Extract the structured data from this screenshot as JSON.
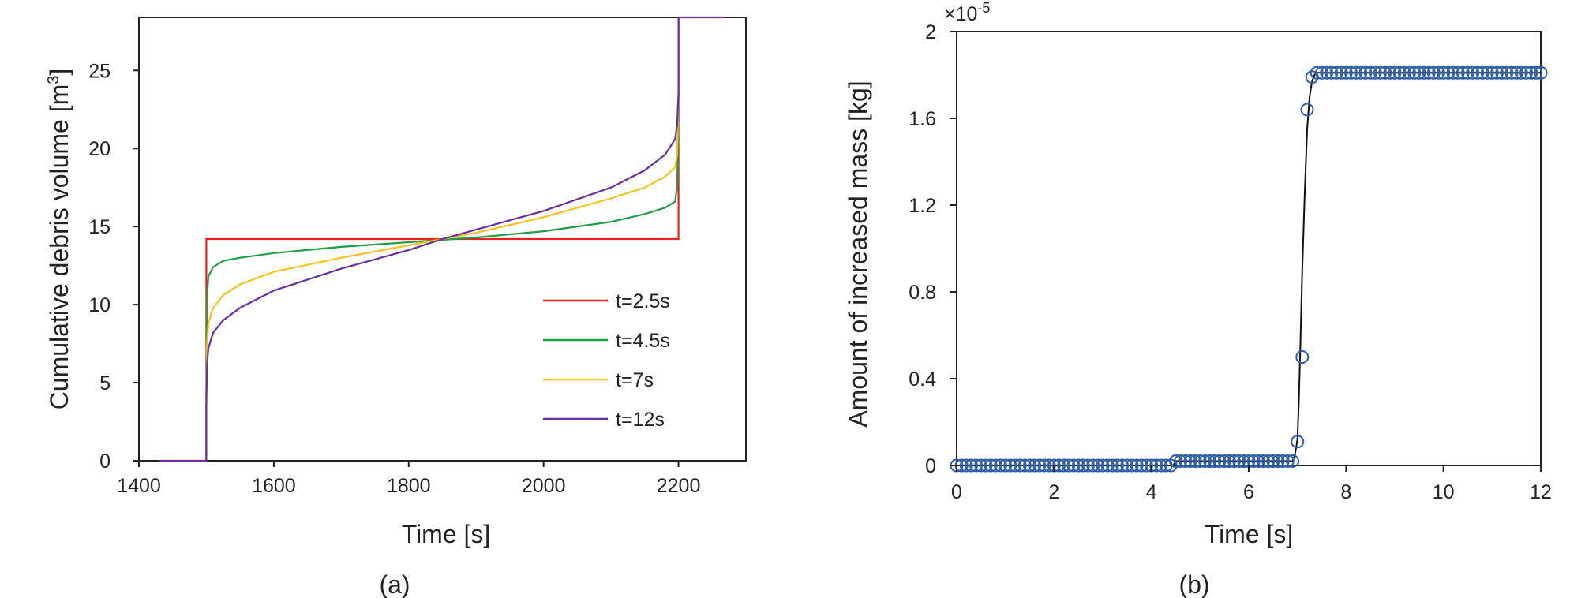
{
  "panel_labels": [
    "(a)",
    "(b)"
  ],
  "chart_data": [
    {
      "type": "line",
      "xlabel": "Time [s]",
      "ylabel_main": "Cumulative debris volume [m",
      "ylabel_sup": "3",
      "ylabel_close": "]",
      "xlim": [
        1400,
        2300
      ],
      "ylim": [
        0,
        28.4
      ],
      "xticks": [
        1400,
        1600,
        1800,
        2000,
        2200
      ],
      "yticks": [
        0,
        5,
        10,
        15,
        20,
        25
      ],
      "grid": false,
      "legend_position": "right",
      "series": [
        {
          "name": "t=2.5s",
          "color": "#e8211f",
          "x": [
            1500,
            1500,
            2200,
            2200
          ],
          "y": [
            0,
            14.2,
            14.2,
            28.4
          ]
        },
        {
          "name": "t=4.5s",
          "color": "#1e9e46",
          "x": [
            1500,
            1500,
            1501,
            1503,
            1510,
            1525,
            1550,
            1600,
            1700,
            1800,
            1900,
            2000,
            2100,
            2150,
            2180,
            2195,
            2198,
            2200,
            2200
          ],
          "y": [
            0,
            6,
            10.5,
            11.8,
            12.4,
            12.8,
            13.0,
            13.3,
            13.7,
            14.0,
            14.3,
            14.7,
            15.3,
            15.8,
            16.2,
            16.6,
            17.5,
            22,
            28.4
          ]
        },
        {
          "name": "t=7s",
          "color": "#f5c21f",
          "x": [
            1500,
            1500,
            1501,
            1503,
            1510,
            1525,
            1550,
            1600,
            1700,
            1800,
            1850,
            1900,
            2000,
            2100,
            2150,
            2180,
            2195,
            2198,
            2200,
            2200
          ],
          "y": [
            0,
            4,
            7.5,
            8.8,
            9.8,
            10.6,
            11.3,
            12.1,
            13.0,
            13.8,
            14.2,
            14.6,
            15.6,
            16.8,
            17.5,
            18.2,
            18.8,
            19.6,
            24,
            28.4
          ]
        },
        {
          "name": "t=12s",
          "color": "#6a2f9c",
          "x": [
            1430,
            1500,
            1500,
            1501,
            1503,
            1510,
            1525,
            1550,
            1600,
            1700,
            1800,
            1850,
            1900,
            2000,
            2100,
            2150,
            2180,
            2195,
            2198,
            2200,
            2200,
            2270
          ],
          "y": [
            0,
            0,
            3.5,
            6.2,
            7.2,
            8.2,
            9.0,
            9.8,
            10.9,
            12.3,
            13.5,
            14.2,
            14.8,
            16.0,
            17.5,
            18.6,
            19.6,
            20.6,
            21.5,
            23.5,
            28.4,
            28.4
          ]
        }
      ]
    },
    {
      "type": "scatter",
      "xlabel": "Time [s]",
      "ylabel": "Amount of increased mass  [kg]",
      "exponent_prefix": "×10",
      "exponent_power": "-5",
      "xlim": [
        0,
        12
      ],
      "ylim": [
        0,
        2
      ],
      "xticks": [
        "0",
        "2",
        "4",
        "6",
        "8",
        "10",
        "12"
      ],
      "yticks": [
        "0",
        "0.4",
        "0.8",
        "1.2",
        "1.6",
        "2"
      ],
      "grid": false,
      "marker": "circle",
      "marker_color": "#2e5fa6",
      "line_color": "#111111",
      "points": {
        "x": [
          0,
          0.1,
          0.2,
          0.3,
          0.4,
          0.5,
          0.6,
          0.7,
          0.8,
          0.9,
          1.0,
          1.1,
          1.2,
          1.3,
          1.4,
          1.5,
          1.6,
          1.7,
          1.8,
          1.9,
          2.0,
          2.1,
          2.2,
          2.3,
          2.4,
          2.5,
          2.6,
          2.7,
          2.8,
          2.9,
          3.0,
          3.1,
          3.2,
          3.3,
          3.4,
          3.5,
          3.6,
          3.7,
          3.8,
          3.9,
          4.0,
          4.1,
          4.2,
          4.3,
          4.4,
          4.5,
          4.6,
          4.7,
          4.8,
          4.9,
          5.0,
          5.1,
          5.2,
          5.3,
          5.4,
          5.5,
          5.6,
          5.7,
          5.8,
          5.9,
          6.0,
          6.1,
          6.2,
          6.3,
          6.4,
          6.5,
          6.6,
          6.7,
          6.8,
          6.9,
          7.0,
          7.1,
          7.2,
          7.3,
          7.4,
          7.5,
          7.6,
          7.7,
          7.8,
          7.9,
          8.0,
          8.1,
          8.2,
          8.3,
          8.4,
          8.5,
          8.6,
          8.7,
          8.8,
          8.9,
          9.0,
          9.1,
          9.2,
          9.3,
          9.4,
          9.5,
          9.6,
          9.7,
          9.8,
          9.9,
          10.0,
          10.1,
          10.2,
          10.3,
          10.4,
          10.5,
          10.6,
          10.7,
          10.8,
          10.9,
          11.0,
          11.1,
          11.2,
          11.3,
          11.4,
          11.5,
          11.6,
          11.7,
          11.8,
          11.9,
          12.0
        ],
        "y": [
          0,
          0,
          0,
          0,
          0,
          0,
          0,
          0,
          0,
          0,
          0,
          0,
          0,
          0,
          0,
          0,
          0,
          0,
          0,
          0,
          0,
          0,
          0,
          0,
          0,
          0,
          0,
          0,
          0,
          0,
          0,
          0,
          0,
          0,
          0,
          0,
          0,
          0,
          0,
          0,
          0,
          0,
          0,
          0,
          0,
          0.02,
          0.02,
          0.02,
          0.02,
          0.02,
          0.02,
          0.02,
          0.02,
          0.02,
          0.02,
          0.02,
          0.02,
          0.02,
          0.02,
          0.02,
          0.02,
          0.02,
          0.02,
          0.02,
          0.02,
          0.02,
          0.02,
          0.02,
          0.02,
          0.02,
          0.11,
          0.5,
          1.64,
          1.79,
          1.81,
          1.81,
          1.81,
          1.81,
          1.81,
          1.81,
          1.81,
          1.81,
          1.81,
          1.81,
          1.81,
          1.81,
          1.81,
          1.81,
          1.81,
          1.81,
          1.81,
          1.81,
          1.81,
          1.81,
          1.81,
          1.81,
          1.81,
          1.81,
          1.81,
          1.81,
          1.81,
          1.81,
          1.81,
          1.81,
          1.81,
          1.81,
          1.81,
          1.81,
          1.81,
          1.81,
          1.81,
          1.81,
          1.81,
          1.81,
          1.81,
          1.81,
          1.81,
          1.81,
          1.81,
          1.81,
          1.81
        ]
      },
      "line": {
        "x": [
          0,
          4.45,
          4.5,
          6.9,
          6.95,
          7.0,
          7.03,
          7.06,
          7.1,
          7.15,
          7.2,
          7.25,
          7.3,
          7.35,
          7.4,
          7.5,
          12
        ],
        "y": [
          0,
          0,
          0.02,
          0.02,
          0.05,
          0.12,
          0.3,
          0.55,
          0.9,
          1.25,
          1.55,
          1.7,
          1.77,
          1.8,
          1.81,
          1.81,
          1.81
        ]
      }
    }
  ]
}
